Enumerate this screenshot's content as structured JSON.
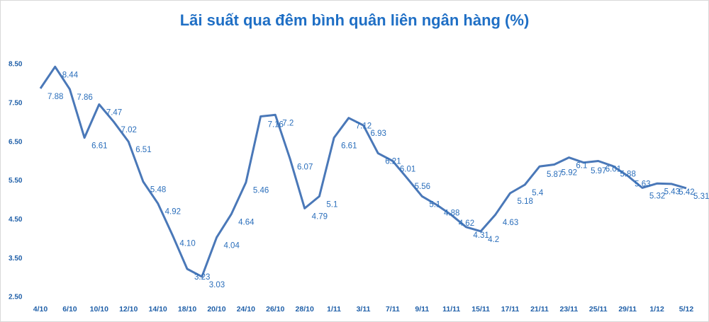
{
  "chart_data": {
    "type": "line",
    "title": "Lãi suất qua đêm bình quân liên ngân hàng (%)",
    "categories": [
      "4/10",
      null,
      "6/10",
      null,
      "10/10",
      null,
      "12/10",
      null,
      "14/10",
      null,
      "18/10",
      null,
      "20/10",
      null,
      "24/10",
      null,
      "26/10",
      null,
      "28/10",
      null,
      "1/11",
      null,
      "3/11",
      null,
      "7/11",
      null,
      "9/11",
      null,
      "11/11",
      null,
      "15/11",
      null,
      "17/11",
      null,
      "21/11",
      null,
      "23/11",
      null,
      "25/11",
      null,
      "29/11",
      null,
      "1/12",
      null,
      "5/12"
    ],
    "values": [
      7.88,
      8.44,
      7.86,
      6.61,
      7.47,
      7.02,
      6.51,
      5.48,
      4.92,
      4.1,
      3.23,
      3.03,
      4.04,
      4.64,
      5.46,
      7.16,
      7.2,
      6.07,
      4.79,
      5.1,
      6.61,
      7.12,
      6.93,
      6.21,
      6.01,
      5.56,
      5.1,
      4.88,
      4.62,
      4.31,
      4.2,
      4.63,
      5.18,
      5.4,
      5.87,
      5.92,
      6.1,
      5.97,
      6.01,
      5.88,
      5.63,
      5.32,
      5.43,
      5.42,
      5.31
    ],
    "value_labels": [
      "7.88",
      "8.44",
      "7.86",
      "6.61",
      "7.47",
      "7.02",
      "6.51",
      "5.48",
      "4.92",
      "4.10",
      "3.23",
      "3.03",
      "4.04",
      "4.64",
      "5.46",
      "7.16",
      "7.2",
      "6.07",
      "4.79",
      "5.1",
      "6.61",
      "7.12",
      "6.93",
      "6.21",
      "6.01",
      "5.56",
      "5.1",
      "4.88",
      "4.62",
      "4.31",
      "4.2",
      "4.63",
      "5.18",
      "5.4",
      "5.87",
      "5.92",
      "6.1",
      "5.97",
      "6.01",
      "5.88",
      "5.63",
      "5.32",
      "5.43",
      "5.42",
      "5.31"
    ],
    "color": "#4a78b8",
    "ylim": [
      2.5,
      8.5
    ],
    "yticks": [
      {
        "value": 2.5,
        "label": "2.50"
      },
      {
        "value": 3.5,
        "label": "3.50"
      },
      {
        "value": 4.5,
        "label": "4.50"
      },
      {
        "value": 5.5,
        "label": "5.50"
      },
      {
        "value": 6.5,
        "label": "6.50"
      },
      {
        "value": 7.5,
        "label": "7.50"
      },
      {
        "value": 8.5,
        "label": "8.50"
      }
    ],
    "grid": false
  }
}
